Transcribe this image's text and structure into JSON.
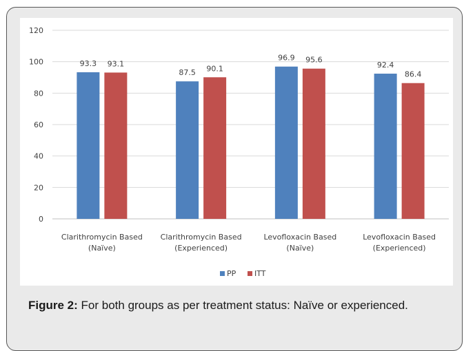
{
  "caption": {
    "label": "Figure 2:",
    "text": "For both groups as per treatment status: Naïve or experienced."
  },
  "chart_data": {
    "type": "bar",
    "categories": [
      [
        "Clarithromycin Based",
        "(Naïve)"
      ],
      [
        "Clarithromycin Based",
        "(Experienced)"
      ],
      [
        "Levofloxacin Based",
        "(Naïve)"
      ],
      [
        "Levofloxacin Based",
        "(Experienced)"
      ]
    ],
    "series": [
      {
        "name": "PP",
        "values": [
          93.3,
          87.5,
          96.9,
          92.4
        ],
        "color": "#4f81bd"
      },
      {
        "name": "ITT",
        "values": [
          93.1,
          90.1,
          95.6,
          86.4
        ],
        "color": "#c0504d"
      }
    ],
    "ylim": [
      0,
      120
    ],
    "yticks": [
      0,
      20,
      40,
      60,
      80,
      100,
      120
    ],
    "grid": true,
    "legend_position": "bottom",
    "data_labels": true
  }
}
